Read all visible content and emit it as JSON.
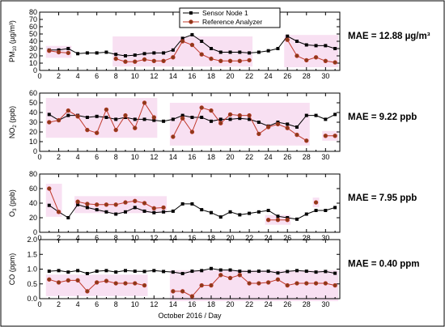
{
  "figure": {
    "xlabel": "October 2016 / Day",
    "legend": {
      "series": [
        "Sensor Node 1",
        "Reference Analyzer"
      ],
      "placement": "top-center"
    },
    "colors": {
      "sensor": "#000000",
      "reference": "#c0392b",
      "highlight": "#f6d6ee"
    }
  },
  "chart_data": [
    {
      "type": "line",
      "ylabel_main": "PM",
      "ylabel_sub": "10",
      "ylabel_unit": " (µg/m³)",
      "mae": "MAE = 12.88 µg/m³",
      "xlim": [
        0,
        31.5
      ],
      "ylim": [
        0,
        80
      ],
      "yticks": [
        0,
        10,
        20,
        30,
        40,
        50,
        60,
        70,
        80
      ],
      "xticks": [
        0,
        2,
        4,
        6,
        8,
        10,
        12,
        14,
        16,
        18,
        20,
        22,
        24,
        26,
        28,
        30
      ],
      "grid": false,
      "series": [
        {
          "name": "Sensor Node 1",
          "x": [
            1,
            2,
            3,
            4,
            5,
            6,
            7,
            8,
            9,
            10,
            11,
            12,
            13,
            14,
            15,
            16,
            17,
            18,
            19,
            20,
            21,
            22,
            23,
            24,
            25,
            26,
            27,
            28,
            29,
            30,
            31
          ],
          "y": [
            28,
            28,
            30,
            23,
            24,
            24,
            25,
            22,
            20,
            21,
            23,
            24,
            24,
            28,
            44,
            49,
            40,
            30,
            25,
            25,
            25,
            24,
            25,
            27,
            30,
            47,
            40,
            35,
            34,
            34,
            30
          ]
        },
        {
          "name": "Reference Analyzer",
          "x": [
            1,
            2,
            3,
            4,
            5,
            6,
            7,
            8,
            9,
            10,
            11,
            12,
            13,
            14,
            15,
            16,
            17,
            18,
            19,
            20,
            21,
            22,
            23,
            24,
            25,
            26,
            27,
            28,
            29,
            30,
            31
          ],
          "y": [
            27,
            25,
            24,
            null,
            null,
            null,
            null,
            16,
            12,
            12,
            15,
            13,
            13,
            18,
            40,
            35,
            22,
            16,
            13,
            13,
            13,
            14,
            null,
            null,
            null,
            42,
            20,
            14,
            18,
            13,
            11
          ]
        }
      ]
    },
    {
      "type": "line",
      "ylabel_main": "NO",
      "ylabel_sub": "2",
      "ylabel_unit": " (ppb)",
      "mae": "MAE = 9.22 ppb",
      "xlim": [
        0,
        31.5
      ],
      "ylim": [
        0,
        60
      ],
      "yticks": [
        0,
        10,
        20,
        30,
        40,
        50,
        60
      ],
      "xticks": [
        0,
        2,
        4,
        6,
        8,
        10,
        12,
        14,
        16,
        18,
        20,
        22,
        24,
        26,
        28,
        30
      ],
      "grid": false,
      "series": [
        {
          "name": "Sensor Node 1",
          "x": [
            1,
            2,
            3,
            4,
            5,
            6,
            7,
            8,
            9,
            10,
            11,
            12,
            13,
            14,
            15,
            16,
            17,
            18,
            19,
            20,
            21,
            22,
            23,
            24,
            25,
            26,
            27,
            28,
            29,
            30,
            31
          ],
          "y": [
            38,
            32,
            37,
            37,
            35,
            36,
            35,
            33,
            35,
            33,
            33,
            32,
            31,
            33,
            37,
            35,
            35,
            31,
            33,
            33,
            34,
            33,
            30,
            26,
            30,
            28,
            25,
            37,
            37,
            33,
            38
          ]
        },
        {
          "name": "Reference Analyzer",
          "x": [
            1,
            2,
            3,
            4,
            5,
            6,
            7,
            8,
            9,
            10,
            11,
            12,
            13,
            14,
            15,
            16,
            17,
            18,
            19,
            20,
            21,
            22,
            23,
            24,
            25,
            26,
            27,
            28,
            29,
            30,
            31
          ],
          "y": [
            30,
            32,
            42,
            36,
            22,
            19,
            43,
            22,
            37,
            24,
            50,
            35,
            null,
            15,
            34,
            20,
            45,
            42,
            29,
            38,
            37,
            37,
            18,
            25,
            28,
            24,
            17,
            11,
            null,
            16,
            16
          ]
        }
      ]
    },
    {
      "type": "line",
      "ylabel_main": "O",
      "ylabel_sub": "3",
      "ylabel_unit": " (ppb)",
      "mae": "MAE = 7.95 ppb",
      "xlim": [
        0,
        31.5
      ],
      "ylim": [
        0,
        80
      ],
      "yticks": [
        0,
        20,
        40,
        60,
        80
      ],
      "xticks": [
        0,
        2,
        4,
        6,
        8,
        10,
        12,
        14,
        16,
        18,
        20,
        22,
        24,
        26,
        28,
        30
      ],
      "grid": false,
      "series": [
        {
          "name": "Sensor Node 1",
          "x": [
            1,
            2,
            3,
            4,
            5,
            6,
            7,
            8,
            9,
            10,
            11,
            12,
            13,
            14,
            15,
            16,
            17,
            18,
            19,
            20,
            21,
            22,
            23,
            24,
            25,
            26,
            27,
            28,
            29,
            30,
            31
          ],
          "y": [
            37,
            28,
            20,
            38,
            34,
            31,
            28,
            25,
            28,
            34,
            29,
            27,
            28,
            29,
            39,
            39,
            31,
            27,
            21,
            28,
            24,
            26,
            28,
            30,
            22,
            20,
            18,
            25,
            30,
            30,
            34
          ]
        },
        {
          "name": "Reference Analyzer",
          "x": [
            1,
            2,
            3,
            4,
            5,
            6,
            7,
            8,
            9,
            10,
            11,
            12,
            13,
            14,
            15,
            16,
            17,
            18,
            19,
            20,
            21,
            22,
            23,
            24,
            25,
            26,
            27,
            28,
            29,
            30,
            31
          ],
          "y": [
            60,
            28,
            null,
            42,
            39,
            38,
            38,
            38,
            41,
            43,
            40,
            33,
            34,
            null,
            null,
            null,
            null,
            null,
            null,
            null,
            null,
            null,
            null,
            17,
            17,
            17,
            null,
            null,
            41,
            null,
            null
          ]
        }
      ]
    },
    {
      "type": "line",
      "ylabel_main": "CO",
      "ylabel_sub": "",
      "ylabel_unit": " (ppm)",
      "mae": "MAE = 0.40 ppm",
      "xlim": [
        0,
        31.5
      ],
      "ylim": [
        0,
        2.0
      ],
      "yticks": [
        "0.0",
        "0.5",
        "1.0",
        "1.5",
        "2.0"
      ],
      "xticks": [
        0,
        2,
        4,
        6,
        8,
        10,
        12,
        14,
        16,
        18,
        20,
        22,
        24,
        26,
        28,
        30
      ],
      "grid": false,
      "series": [
        {
          "name": "Sensor Node 1",
          "x": [
            1,
            2,
            3,
            4,
            5,
            6,
            7,
            8,
            9,
            10,
            11,
            12,
            13,
            14,
            15,
            16,
            17,
            18,
            19,
            20,
            21,
            22,
            23,
            24,
            25,
            26,
            27,
            28,
            29,
            30,
            31
          ],
          "y": [
            0.93,
            0.95,
            0.9,
            0.95,
            0.85,
            0.93,
            0.95,
            0.9,
            0.95,
            0.93,
            0.92,
            0.95,
            0.92,
            0.9,
            0.85,
            0.93,
            0.95,
            1.02,
            0.97,
            0.97,
            0.93,
            0.92,
            0.93,
            0.93,
            0.87,
            0.92,
            0.95,
            0.93,
            0.9,
            0.92,
            0.86
          ]
        },
        {
          "name": "Reference Analyzer",
          "x": [
            1,
            2,
            3,
            4,
            5,
            6,
            7,
            8,
            9,
            10,
            11,
            12,
            13,
            14,
            15,
            16,
            17,
            18,
            19,
            20,
            21,
            22,
            23,
            24,
            25,
            26,
            27,
            28,
            29,
            30,
            31
          ],
          "y": [
            0.65,
            0.55,
            0.62,
            0.62,
            0.25,
            0.55,
            0.6,
            0.52,
            0.52,
            0.52,
            0.45,
            null,
            null,
            0.25,
            0.25,
            0.08,
            0.45,
            0.45,
            0.8,
            0.7,
            0.8,
            0.52,
            0.52,
            0.55,
            0.65,
            0.45,
            0.52,
            0.52,
            0.52,
            0.52,
            0.45
          ]
        }
      ]
    }
  ]
}
